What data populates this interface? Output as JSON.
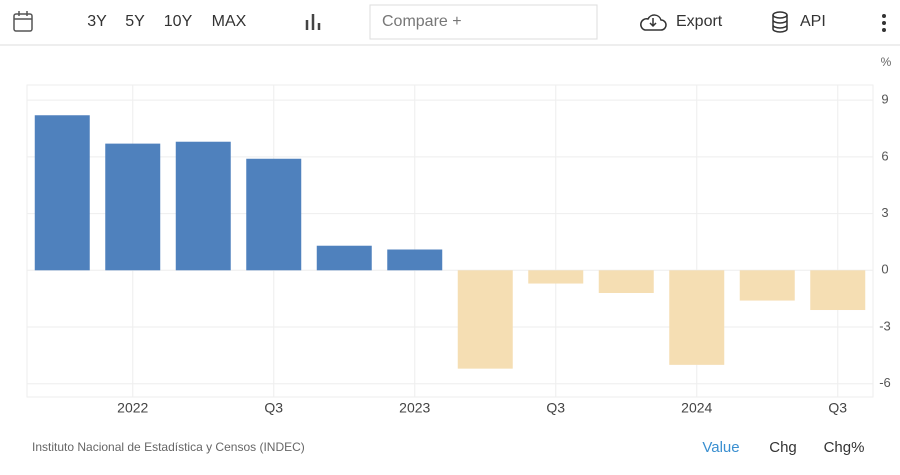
{
  "toolbar": {
    "ranges": [
      "3Y",
      "5Y",
      "10Y",
      "MAX"
    ],
    "compare": "Compare +",
    "export": "Export",
    "api": "API"
  },
  "chart_data": {
    "type": "bar",
    "y_unit": "%",
    "categories": [
      null,
      "2022",
      null,
      "Q3",
      null,
      "2023",
      null,
      "Q3",
      null,
      "2024",
      null,
      "Q3"
    ],
    "values": [
      8.2,
      6.7,
      6.8,
      5.9,
      1.3,
      1.1,
      -5.2,
      -0.7,
      -1.2,
      -5.0,
      -1.6,
      -2.1
    ],
    "color": "#4f81bd",
    "negative_color": "#f5deb3",
    "ylim": [
      -6.7,
      9.8
    ],
    "yticks": [
      -6,
      -3,
      0,
      3,
      6,
      9
    ],
    "grid": true
  },
  "footer": {
    "source": "Instituto Nacional de Estadística y Censos (INDEC)",
    "views": [
      "Value",
      "Chg",
      "Chg%"
    ]
  }
}
